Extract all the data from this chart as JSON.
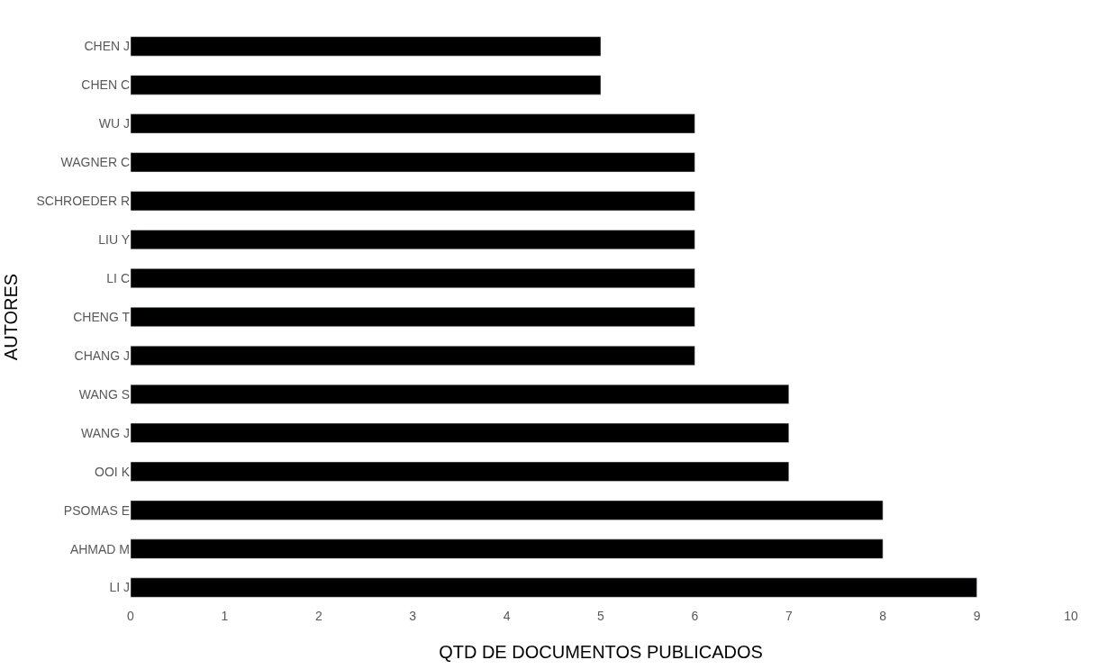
{
  "chart_data": {
    "type": "bar",
    "orientation": "horizontal",
    "xlabel": "QTD DE DOCUMENTOS PUBLICADOS",
    "ylabel": "AUTORES",
    "categories": [
      "CHEN J",
      "CHEN C",
      "WU J",
      "WAGNER C",
      "SCHROEDER R",
      "LIU Y",
      "LI C",
      "CHENG T",
      "CHANG J",
      "WANG S",
      "WANG J",
      "OOI K",
      "PSOMAS E",
      "AHMAD M",
      "LI J"
    ],
    "values": [
      5,
      5,
      6,
      6,
      6,
      6,
      6,
      6,
      6,
      7,
      7,
      7,
      8,
      8,
      9
    ],
    "color": "#000000",
    "xlim": [
      0,
      10
    ],
    "xticks": [
      0,
      1,
      2,
      3,
      4,
      5,
      6,
      7,
      8,
      9,
      10
    ]
  }
}
